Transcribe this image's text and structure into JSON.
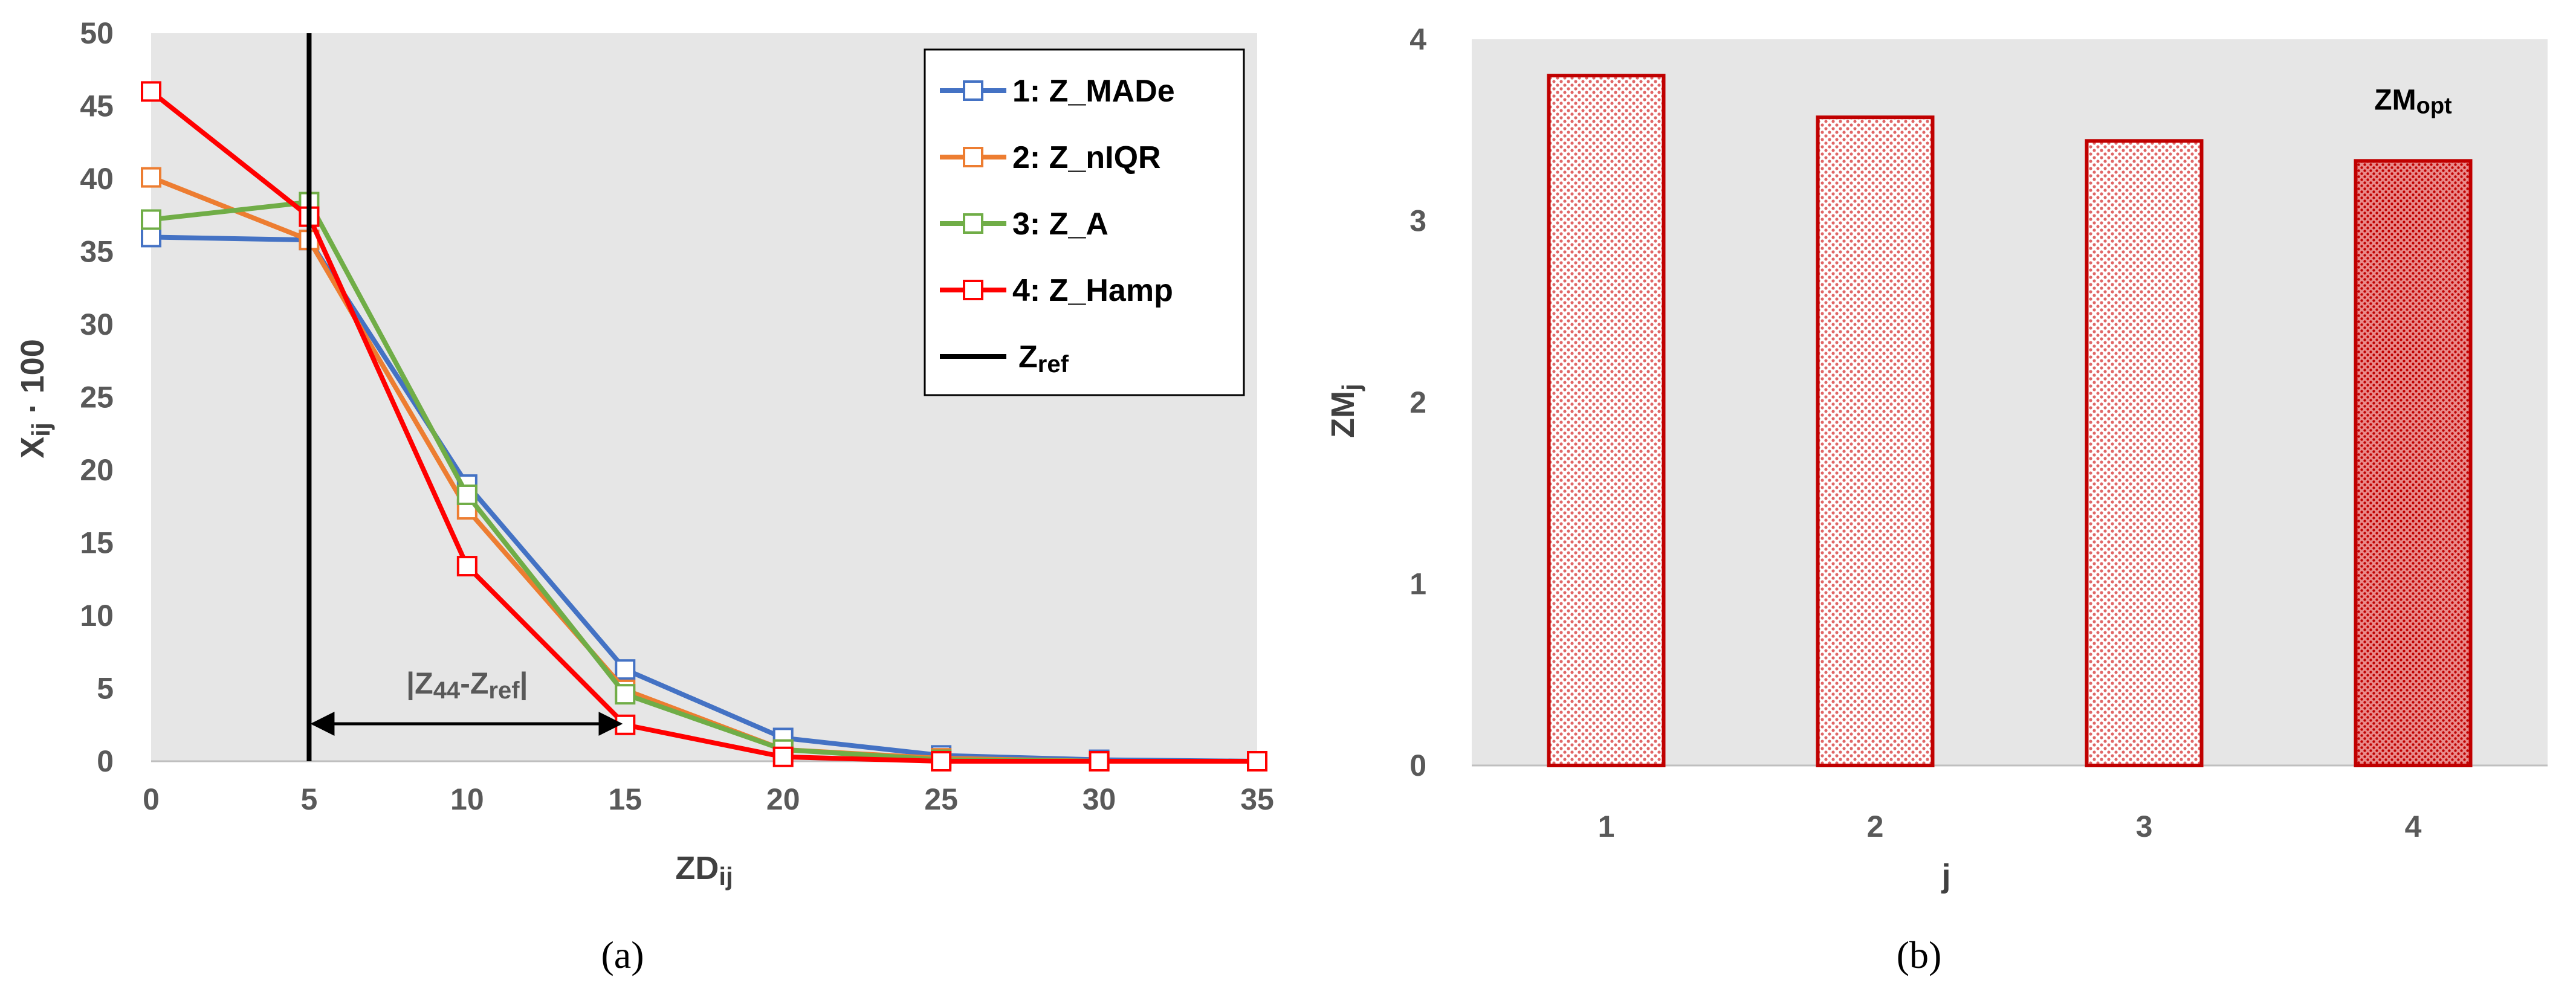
{
  "chart_data": [
    {
      "type": "line",
      "panel_label": "a",
      "x": [
        0,
        5,
        10,
        15,
        20,
        25,
        30,
        35
      ],
      "xlabel": {
        "main": "ZD",
        "sub": "ij"
      },
      "ylabel": {
        "main": "X",
        "sub": "ij",
        "suffix": " · 100"
      },
      "xlim": [
        0,
        35
      ],
      "ylim": [
        0,
        50
      ],
      "xticks": [
        0,
        5,
        10,
        15,
        20,
        25,
        30,
        35
      ],
      "yticks": [
        0,
        5,
        10,
        15,
        20,
        25,
        30,
        35,
        40,
        45,
        50
      ],
      "series": [
        {
          "name": "1: Z_MADe",
          "color": "#4472C4",
          "values": [
            36.0,
            35.8,
            19.0,
            6.3,
            1.6,
            0.4,
            0.1,
            0.0
          ]
        },
        {
          "name": "2: Z_nIQR",
          "color": "#ED7D31",
          "values": [
            40.1,
            35.8,
            17.3,
            4.9,
            0.8,
            0.2,
            0.0,
            0.0
          ]
        },
        {
          "name": "3: Z_A",
          "color": "#70AD47",
          "values": [
            37.2,
            38.4,
            18.3,
            4.6,
            0.8,
            0.1,
            0.0,
            0.0
          ]
        },
        {
          "name": "4: Z_Hamp",
          "color": "#FF0000",
          "values": [
            46.0,
            37.4,
            13.4,
            2.5,
            0.3,
            0.0,
            0.0,
            0.0
          ]
        }
      ],
      "reference_line": {
        "x": 5,
        "label_main": "Z",
        "label_sub": "ref",
        "color": "#000000"
      },
      "annotation": {
        "from": 5,
        "to": 15,
        "y": 2.5,
        "parts": {
          "open": "|Z",
          "sub1": "44",
          "mid": "-Z",
          "sub2": "ref",
          "close": "|"
        }
      }
    },
    {
      "type": "bar",
      "panel_label": "b",
      "categories": [
        "1",
        "2",
        "3",
        "4"
      ],
      "values": [
        3.8,
        3.57,
        3.44,
        3.33
      ],
      "bar_color": "#C00000",
      "xlabel": "j",
      "ylabel": {
        "main": "ZM",
        "sub": "j"
      },
      "ylim": [
        0,
        4
      ],
      "yticks": [
        0,
        1,
        2,
        3,
        4
      ],
      "annotation": {
        "main": "ZM",
        "sub": "opt",
        "target_index": 3
      }
    }
  ],
  "captions": {
    "a": "(a)",
    "b": "(b)"
  }
}
